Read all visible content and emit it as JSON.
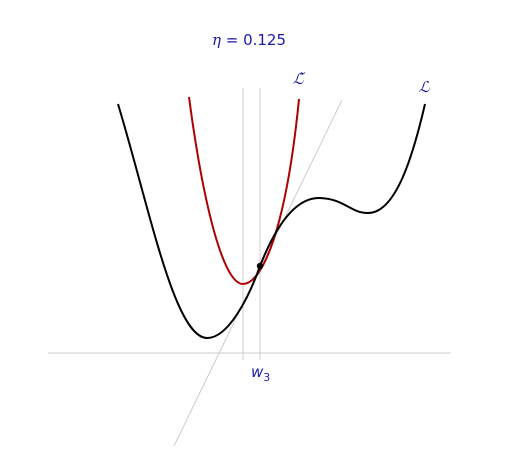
{
  "title": {
    "symbol": "η",
    "equals": " = ",
    "value": "0.125"
  },
  "labels": {
    "loss": "ℒ",
    "surrogate": "ℒ̃",
    "point_base": "w",
    "point_sub": "3"
  },
  "colors": {
    "label_blue": "#1a1aa6",
    "loss_curve": "#000000",
    "surrogate_curve": "#b00000",
    "axis": "#cccccc",
    "guide": "#cccccc",
    "point": "#000000"
  }
}
